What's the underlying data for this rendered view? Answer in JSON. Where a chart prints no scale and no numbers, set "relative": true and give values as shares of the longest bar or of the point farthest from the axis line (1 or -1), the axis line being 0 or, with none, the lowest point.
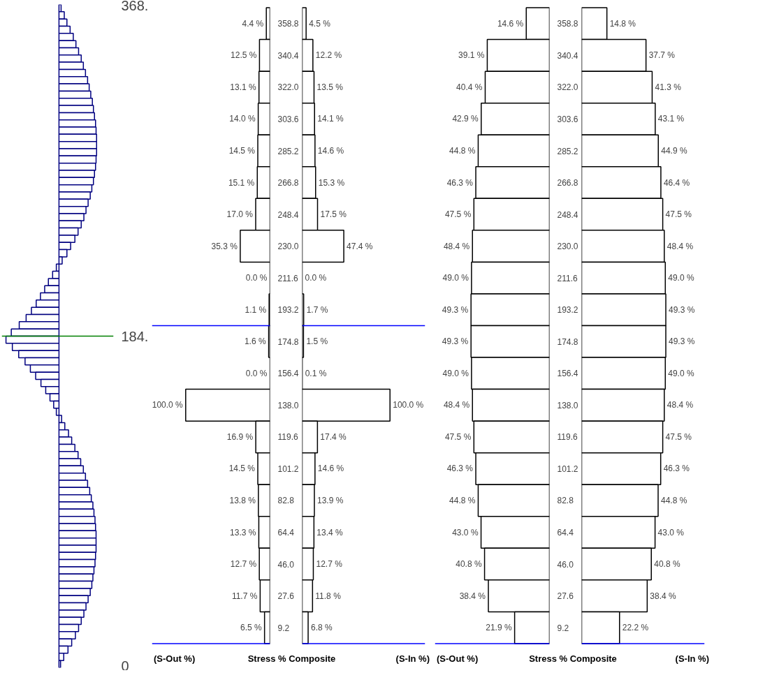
{
  "chart_data": [
    {
      "type": "bar",
      "orientation": "horizontal",
      "relative": true,
      "color": "#000080",
      "tick_labels": "y",
      "ylim": [
        0,
        368
      ],
      "yticks": [
        {
          "value": 368,
          "label": "368."
        },
        {
          "value": 184,
          "label": "184."
        },
        0
      ],
      "ref_lines": [
        {
          "axis": "y",
          "value": 184,
          "color": "#008000"
        }
      ],
      "x": [
        366,
        362,
        358,
        354,
        350,
        346,
        342,
        338,
        334,
        330,
        326,
        322,
        318,
        314,
        310,
        306,
        302,
        298,
        294,
        290,
        286,
        282,
        278,
        274,
        270,
        266,
        262,
        258,
        254,
        250,
        246,
        242,
        238,
        234,
        230,
        226,
        222,
        218,
        214,
        210,
        206,
        202,
        198,
        194,
        190,
        186,
        182,
        178,
        174,
        170,
        166,
        162,
        158,
        154,
        150,
        146,
        142,
        138,
        134,
        130,
        126,
        122,
        118,
        114,
        110,
        106,
        102,
        98,
        94,
        90,
        86,
        82,
        78,
        74,
        70,
        66,
        62,
        58,
        54,
        50,
        46,
        42,
        38,
        34,
        30,
        26,
        22,
        18,
        14,
        10,
        6,
        2
      ],
      "values": [
        0.04,
        0.1,
        0.15,
        0.21,
        0.27,
        0.32,
        0.37,
        0.42,
        0.46,
        0.5,
        0.54,
        0.57,
        0.6,
        0.63,
        0.65,
        0.67,
        0.69,
        0.7,
        0.71,
        0.71,
        0.71,
        0.7,
        0.69,
        0.67,
        0.65,
        0.62,
        0.59,
        0.55,
        0.51,
        0.47,
        0.42,
        0.36,
        0.3,
        0.22,
        0.15,
        0.06,
        -0.05,
        -0.12,
        -0.2,
        -0.27,
        -0.35,
        -0.43,
        -0.52,
        -0.62,
        -0.75,
        -0.9,
        -1,
        -0.88,
        -0.76,
        -0.64,
        -0.54,
        -0.44,
        -0.34,
        -0.25,
        -0.17,
        -0.1,
        -0.05,
        0.05,
        0.11,
        0.18,
        0.24,
        0.3,
        0.36,
        0.41,
        0.46,
        0.5,
        0.54,
        0.58,
        0.61,
        0.64,
        0.66,
        0.68,
        0.69,
        0.7,
        0.7,
        0.7,
        0.69,
        0.68,
        0.66,
        0.64,
        0.62,
        0.59,
        0.55,
        0.51,
        0.47,
        0.42,
        0.37,
        0.31,
        0.24,
        0.17,
        0.09,
        0.03
      ]
    },
    {
      "type": "bar",
      "orientation": "horizontal",
      "title": "Stress % Composite",
      "xlabel": "(S-Out %)",
      "color": "#000000",
      "xlim": [
        140,
        0
      ],
      "tick_labels": "y",
      "categories": [
        "358.8",
        "340.4",
        "322.0",
        "303.6",
        "285.2",
        "266.8",
        "248.4",
        "230.0",
        "211.6",
        "193.2",
        "174.8",
        "156.4",
        "138.0",
        "119.6",
        "101.2",
        "82.8",
        "64.4",
        "46.0",
        "27.6",
        "9.2"
      ],
      "values": [
        4.4,
        12.5,
        13.1,
        14.0,
        14.5,
        15.1,
        17.0,
        35.3,
        0.0,
        1.1,
        1.6,
        0.0,
        100.0,
        16.9,
        14.5,
        13.8,
        13.3,
        12.7,
        11.7,
        6.5
      ],
      "value_labels": [
        "4.4 %",
        "12.5 %",
        "13.1 %",
        "14.0 %",
        "14.5 %",
        "15.1 %",
        "17.0 %",
        "35.3 %",
        "0.0 %",
        "1.1 %",
        "1.6 %",
        "0.0 %",
        "100.0 %",
        "16.9 %",
        "14.5 %",
        "13.8 %",
        "13.3 %",
        "12.7 %",
        "11.7 %",
        "6.5 %"
      ],
      "ref_lines": [
        {
          "axis": "y",
          "value": "193.2",
          "color": "#0000ff"
        },
        {
          "axis": "y",
          "value": "9.2",
          "color": "#0000ff"
        }
      ]
    },
    {
      "type": "bar",
      "orientation": "horizontal",
      "xlabel": "(S-In %)",
      "color": "#000000",
      "xlim": [
        0,
        140
      ],
      "tick_labels": false,
      "categories": [
        "358.8",
        "340.4",
        "322.0",
        "303.6",
        "285.2",
        "266.8",
        "248.4",
        "230.0",
        "211.6",
        "193.2",
        "174.8",
        "156.4",
        "138.0",
        "119.6",
        "101.2",
        "82.8",
        "64.4",
        "46.0",
        "27.6",
        "9.2"
      ],
      "values": [
        4.5,
        12.2,
        13.5,
        14.1,
        14.6,
        15.3,
        17.5,
        47.4,
        0.0,
        1.7,
        1.5,
        0.1,
        100.0,
        17.4,
        14.6,
        13.9,
        13.4,
        12.7,
        11.8,
        6.8
      ],
      "value_labels": [
        "4.5 %",
        "12.2 %",
        "13.5 %",
        "14.1 %",
        "14.6 %",
        "15.3 %",
        "17.5 %",
        "47.4 %",
        "0.0 %",
        "1.7 %",
        "1.5 %",
        "0.1 %",
        "100.0 %",
        "17.4 %",
        "14.6 %",
        "13.9 %",
        "13.4 %",
        "12.7 %",
        "11.8 %",
        "6.8 %"
      ],
      "ref_lines": [
        {
          "axis": "y",
          "value": "193.2",
          "color": "#0000ff"
        },
        {
          "axis": "y",
          "value": "9.2",
          "color": "#0000ff"
        }
      ]
    },
    {
      "type": "bar",
      "orientation": "horizontal",
      "title": "Stress % Composite",
      "xlabel": "(S-Out %)",
      "color": "#000000",
      "xlim": [
        72,
        0
      ],
      "tick_labels": "y",
      "categories": [
        "358.8",
        "340.4",
        "322.0",
        "303.6",
        "285.2",
        "266.8",
        "248.4",
        "230.0",
        "211.6",
        "193.2",
        "174.8",
        "156.4",
        "138.0",
        "119.6",
        "101.2",
        "82.8",
        "64.4",
        "46.0",
        "27.6",
        "9.2"
      ],
      "values": [
        14.6,
        39.1,
        40.4,
        42.9,
        44.8,
        46.3,
        47.5,
        48.4,
        49.0,
        49.3,
        49.3,
        49.0,
        48.4,
        47.5,
        46.3,
        44.8,
        43.0,
        40.8,
        38.4,
        21.9
      ],
      "value_labels": [
        "14.6 %",
        "39.1 %",
        "40.4 %",
        "42.9 %",
        "44.8 %",
        "46.3 %",
        "47.5 %",
        "48.4 %",
        "49.0 %",
        "49.3 %",
        "49.3 %",
        "49.0 %",
        "48.4 %",
        "47.5 %",
        "46.3 %",
        "44.8 %",
        "43.0 %",
        "40.8 %",
        "38.4 %",
        "21.9 %"
      ],
      "ref_lines": [
        {
          "axis": "y",
          "value": "9.2",
          "color": "#0000ff"
        }
      ]
    },
    {
      "type": "bar",
      "orientation": "horizontal",
      "xlabel": "(S-In %)",
      "color": "#000000",
      "xlim": [
        0,
        72
      ],
      "tick_labels": false,
      "categories": [
        "358.8",
        "340.4",
        "322.0",
        "303.6",
        "285.2",
        "266.8",
        "248.4",
        "230.0",
        "211.6",
        "193.2",
        "174.8",
        "156.4",
        "138.0",
        "119.6",
        "101.2",
        "82.8",
        "64.4",
        "46.0",
        "27.6",
        "9.2"
      ],
      "values": [
        14.8,
        37.7,
        41.3,
        43.1,
        44.9,
        46.4,
        47.5,
        48.4,
        49.0,
        49.3,
        49.3,
        49.0,
        48.4,
        47.5,
        46.3,
        44.8,
        43.0,
        40.8,
        38.4,
        22.2
      ],
      "value_labels": [
        "14.8 %",
        "37.7 %",
        "41.3 %",
        "43.1 %",
        "44.9 %",
        "46.4 %",
        "47.5 %",
        "48.4 %",
        "49.0 %",
        "49.3 %",
        "49.3 %",
        "49.0 %",
        "48.4 %",
        "47.5 %",
        "46.3 %",
        "44.8 %",
        "43.0 %",
        "40.8 %",
        "38.4 %",
        "22.2 %"
      ],
      "ref_lines": [
        {
          "axis": "y",
          "value": "9.2",
          "color": "#0000ff"
        }
      ]
    }
  ]
}
